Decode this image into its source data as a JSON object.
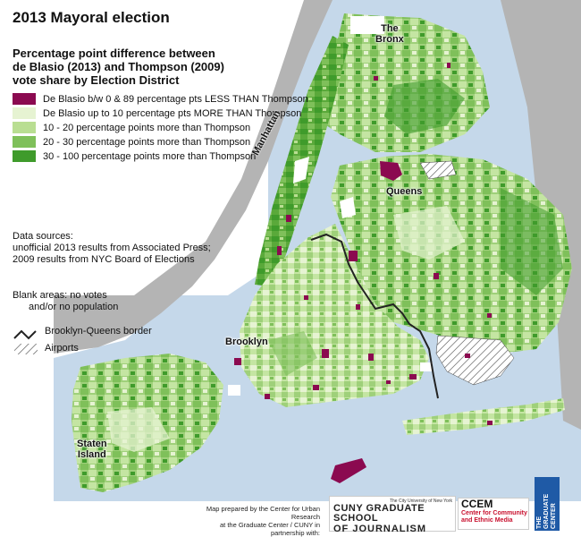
{
  "title": "2013 Mayoral election",
  "subtitle_lines": [
    "Percentage point difference between",
    "de Blasio (2013) and Thompson (2009)",
    "vote share by Election District"
  ],
  "legend": [
    {
      "label": "De Blasio b/w 0 & 89 percentage pts LESS THAN Thompson",
      "color": "#8b0a50"
    },
    {
      "label": "De Blasio up to 10 percentage pts MORE THAN Thompson",
      "color": "#e6f3d2"
    },
    {
      "label": "10 - 20 percentage points more than Thompson",
      "color": "#b9de92"
    },
    {
      "label": "20 - 30 percentage points more than Thompson",
      "color": "#7fc05a"
    },
    {
      "label": "30 - 100 percentage points more than Thompson",
      "color": "#3f9b2b"
    }
  ],
  "sources": {
    "heading": "Data sources:",
    "line1": "unofficial 2013 results from Associated Press;",
    "line2": "2009 results from NYC Board of Elections"
  },
  "blank_note": {
    "line1": "Blank areas: no votes",
    "line2": "and/or no population"
  },
  "border_legend": "Brooklyn-Queens border",
  "airports_legend": "Airports",
  "labels": {
    "bronx_line1": "The",
    "bronx_line2": "Bronx",
    "manhattan": "Manhattan",
    "queens": "Queens",
    "brooklyn": "Brooklyn",
    "staten_line1": "Staten",
    "staten_line2": "Island"
  },
  "credit": {
    "line1": "Map prepared by the Center for Urban Research",
    "line2": "at the Graduate Center / CUNY in partnership with:"
  },
  "logos": {
    "cuny_top": "The City University of New York",
    "cuny_main": "CUNY GRADUATE SCHOOL",
    "cuny_sub": "OF JOURNALISM",
    "ccem_main": "CCEM",
    "ccem_sub1": "Center for Community",
    "ccem_sub2": "and Ethnic Media",
    "gc_line1": "THE",
    "gc_line2": "GRADUATE",
    "gc_line3": "CENTER"
  },
  "colors": {
    "water": "#c5d8ea",
    "land_outside": "#b4b4b4",
    "border_line": "#222222"
  }
}
